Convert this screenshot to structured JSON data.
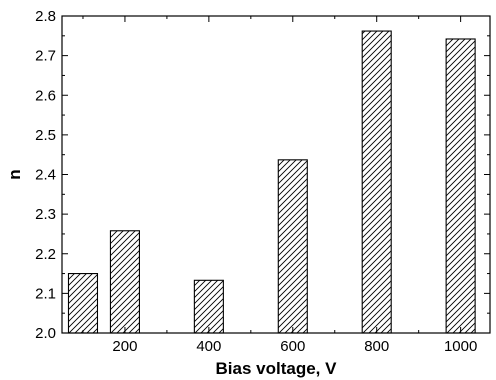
{
  "chart_data": {
    "type": "bar",
    "title": "",
    "xlabel": "Bias voltage, V",
    "ylabel": "n",
    "x": [
      100,
      200,
      400,
      600,
      800,
      1000
    ],
    "values": [
      2.15,
      2.258,
      2.133,
      2.437,
      2.762,
      2.742
    ],
    "xlim": [
      50,
      1070
    ],
    "ylim": [
      2.0,
      2.8
    ],
    "x_ticks": [
      "200",
      "400",
      "600",
      "800",
      "1000"
    ],
    "y_ticks": [
      "2.0",
      "2.1",
      "2.2",
      "2.3",
      "2.4",
      "2.5",
      "2.6",
      "2.7",
      "2.8"
    ],
    "bar_fill": "diagonal-hatch",
    "grid": false,
    "legend": "none"
  }
}
